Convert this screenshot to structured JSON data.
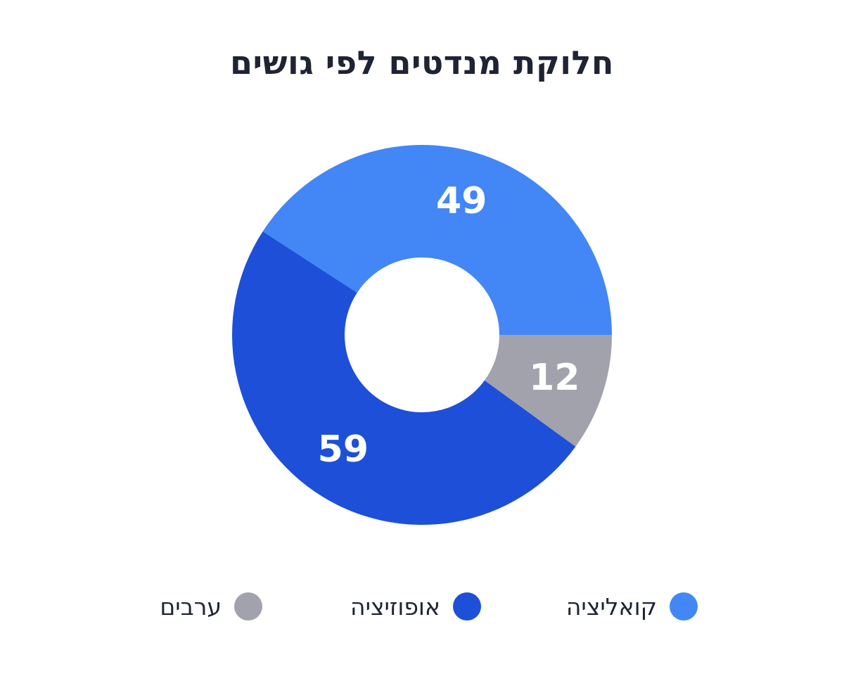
{
  "chart_data": {
    "type": "pie",
    "subtype": "donut",
    "title": "חלוקת מנדטים לפי גושים",
    "series": [
      {
        "name": "קואליציה",
        "value": 49,
        "color": "#4287f5"
      },
      {
        "name": "ערבים",
        "value": 12,
        "color": "#a1a2ab"
      },
      {
        "name": "אופוזיציה",
        "value": 59,
        "color": "#1e4fd8"
      }
    ],
    "legend_order": [
      "קואליציה",
      "אופוזיציה",
      "ערבים"
    ],
    "legend_position": "bottom",
    "data_labels": true
  }
}
